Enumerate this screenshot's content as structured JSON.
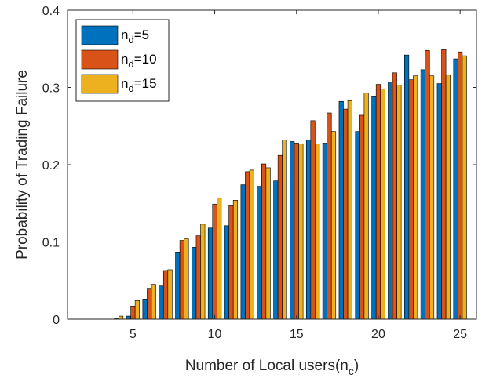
{
  "chart_data": {
    "type": "bar",
    "title": "",
    "xlabel": "Number of Local users(n_c)",
    "xlabel_main": "Number of Local users(n",
    "xlabel_sub": "c",
    "xlabel_close": ")",
    "ylabel": "Probability of Trading Failure",
    "xlim": [
      1,
      26
    ],
    "ylim": [
      0,
      0.4
    ],
    "xticks": [
      5,
      10,
      15,
      20,
      25
    ],
    "yticks": [
      0,
      0.1,
      0.2,
      0.3,
      0.4
    ],
    "ytick_labels": [
      "0",
      "0.1",
      "0.2",
      "0.3",
      "0.4"
    ],
    "grid": false,
    "legend_position": "top-left",
    "x": [
      2,
      3,
      4,
      5,
      6,
      7,
      8,
      9,
      10,
      11,
      12,
      13,
      14,
      15,
      16,
      17,
      18,
      19,
      20,
      21,
      22,
      23,
      24,
      25
    ],
    "series": [
      {
        "name": "n_d=5",
        "label_main": "n",
        "label_sub": "d",
        "label_rest": "=5",
        "color": "#0072BD",
        "values": [
          0,
          0,
          0,
          0.004,
          0.026,
          0.043,
          0.087,
          0.093,
          0.118,
          0.121,
          0.174,
          0.172,
          0.179,
          0.23,
          0.232,
          0.228,
          0.282,
          0.243,
          0.288,
          0.307,
          0.342,
          0.323,
          0.305,
          0.337
        ]
      },
      {
        "name": "n_d=10",
        "label_main": "n",
        "label_sub": "d",
        "label_rest": "=10",
        "color": "#D95319",
        "values": [
          0,
          0,
          0.001,
          0.017,
          0.04,
          0.063,
          0.102,
          0.108,
          0.149,
          0.147,
          0.191,
          0.201,
          0.212,
          0.228,
          0.257,
          0.267,
          0.272,
          0.264,
          0.304,
          0.319,
          0.31,
          0.348,
          0.349,
          0.346
        ]
      },
      {
        "name": "n_d=15",
        "label_main": "n",
        "label_sub": "d",
        "label_rest": "=15",
        "color": "#EDB120",
        "values": [
          0,
          0,
          0.004,
          0.024,
          0.045,
          0.064,
          0.104,
          0.123,
          0.157,
          0.154,
          0.193,
          0.196,
          0.232,
          0.227,
          0.227,
          0.243,
          0.283,
          0.293,
          0.298,
          0.303,
          0.315,
          0.315,
          0.316,
          0.341
        ]
      }
    ]
  }
}
